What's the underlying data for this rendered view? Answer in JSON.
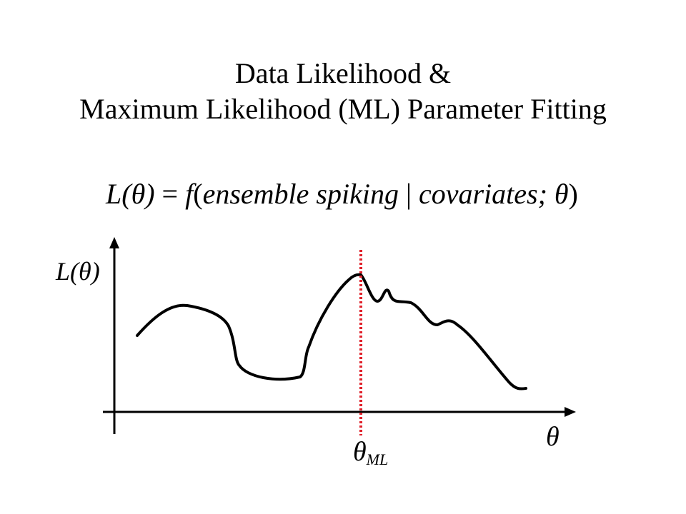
{
  "title": {
    "line1": "Data Likelihood &",
    "line2": "Maximum Likelihood (ML) Parameter Fitting"
  },
  "equation": {
    "lhs": "L(θ)",
    "equals": " = ",
    "func": "f",
    "open": "(",
    "arg1": "ensemble spiking",
    "bar": " | ",
    "arg2": "covariates",
    "semi": "; θ",
    "close": ")"
  },
  "figure": {
    "y_axis_label": "L(θ)",
    "x_axis_label": "θ",
    "ml_marker_label": "θ",
    "ml_marker_subscript": "ML",
    "colors": {
      "curve": "#000000",
      "axes": "#000000",
      "ml_marker": "#e0202a"
    }
  }
}
